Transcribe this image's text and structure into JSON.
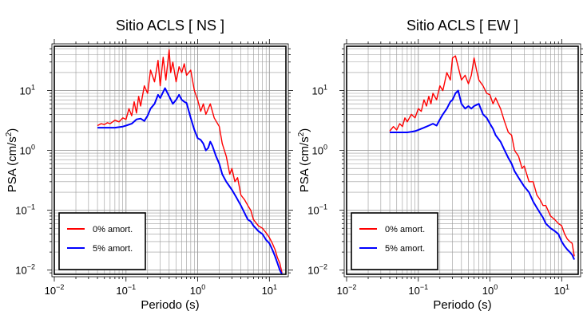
{
  "chart_data": [
    {
      "type": "line",
      "title": "Sitio ACLS [ NS ]",
      "xlabel": "Periodo (s)",
      "ylabel_main": "PSA (cm/s",
      "ylabel_sup": "2",
      "ylabel_end": ")",
      "x_scale": "log",
      "y_scale": "log",
      "xlim": [
        0.01,
        17
      ],
      "ylim": [
        0.0085,
        55
      ],
      "grid": true,
      "legend_position": "bottom-left",
      "x_ticks": [
        {
          "v": 0.01,
          "base": "10",
          "exp": "−2"
        },
        {
          "v": 0.1,
          "base": "10",
          "exp": "−1"
        },
        {
          "v": 1,
          "base": "10",
          "exp": "0"
        },
        {
          "v": 10,
          "base": "10",
          "exp": "1"
        }
      ],
      "y_ticks": [
        {
          "v": 0.01,
          "base": "10",
          "exp": "−2"
        },
        {
          "v": 0.1,
          "base": "10",
          "exp": "−1"
        },
        {
          "v": 1,
          "base": "10",
          "exp": "0"
        },
        {
          "v": 10,
          "base": "10",
          "exp": "1"
        }
      ],
      "series": [
        {
          "name": "0% amort.",
          "color": "#ff0000",
          "x": [
            0.04,
            0.045,
            0.05,
            0.055,
            0.06,
            0.07,
            0.08,
            0.09,
            0.1,
            0.11,
            0.12,
            0.13,
            0.14,
            0.15,
            0.16,
            0.18,
            0.2,
            0.22,
            0.25,
            0.28,
            0.3,
            0.33,
            0.36,
            0.4,
            0.42,
            0.45,
            0.5,
            0.55,
            0.6,
            0.65,
            0.7,
            0.8,
            0.9,
            1.0,
            1.1,
            1.2,
            1.3,
            1.5,
            1.7,
            2.0,
            2.2,
            2.5,
            2.8,
            3.0,
            3.3,
            3.6,
            4.0,
            4.5,
            5.0,
            5.5,
            6.0,
            7.0,
            8.0,
            9.0,
            10.0,
            11.0,
            12.0,
            13.0,
            14.0,
            15.0
          ],
          "y": [
            2.6,
            2.8,
            2.7,
            2.9,
            2.8,
            3.2,
            3.0,
            3.5,
            3.3,
            5.0,
            3.8,
            6.5,
            4.2,
            8.0,
            5.5,
            12.0,
            9.0,
            22.0,
            14.0,
            32.0,
            12.0,
            36.0,
            15.0,
            48.0,
            20.0,
            30.0,
            14.0,
            25.0,
            20.0,
            28.0,
            18.0,
            22.0,
            10.0,
            7.0,
            4.5,
            6.0,
            4.0,
            6.0,
            3.5,
            2.5,
            1.3,
            0.8,
            0.4,
            0.5,
            0.3,
            0.35,
            0.18,
            0.15,
            0.12,
            0.1,
            0.07,
            0.055,
            0.05,
            0.042,
            0.035,
            0.028,
            0.022,
            0.016,
            0.013,
            0.009
          ]
        },
        {
          "name": "5% amort.",
          "color": "#0000ff",
          "x": [
            0.04,
            0.05,
            0.06,
            0.07,
            0.08,
            0.09,
            0.1,
            0.12,
            0.14,
            0.16,
            0.18,
            0.2,
            0.22,
            0.25,
            0.28,
            0.3,
            0.35,
            0.4,
            0.45,
            0.5,
            0.55,
            0.6,
            0.65,
            0.7,
            0.8,
            0.9,
            1.0,
            1.1,
            1.2,
            1.3,
            1.4,
            1.5,
            1.6,
            1.8,
            2.0,
            2.2,
            2.5,
            3.0,
            3.5,
            4.0,
            4.5,
            5.0,
            5.5,
            6.0,
            7.0,
            8.0,
            9.0,
            10.0,
            11.0,
            12.0,
            13.0,
            14.0,
            15.0
          ],
          "y": [
            2.4,
            2.4,
            2.4,
            2.4,
            2.45,
            2.5,
            2.6,
            2.8,
            3.3,
            3.4,
            3.1,
            3.8,
            5.0,
            6.0,
            8.5,
            7.5,
            11.0,
            8.0,
            6.0,
            7.0,
            8.5,
            7.0,
            6.5,
            6.2,
            3.5,
            2.2,
            1.6,
            1.5,
            1.3,
            1.0,
            1.1,
            1.4,
            1.2,
            0.8,
            0.6,
            0.4,
            0.3,
            0.22,
            0.16,
            0.12,
            0.09,
            0.07,
            0.065,
            0.055,
            0.045,
            0.04,
            0.032,
            0.028,
            0.022,
            0.017,
            0.013,
            0.01,
            0.0085
          ]
        }
      ]
    },
    {
      "type": "line",
      "title": "Sitio ACLS [ EW ]",
      "xlabel": "Periodo (s)",
      "ylabel_main": "PSA (cm/s",
      "ylabel_sup": "2",
      "ylabel_end": ")",
      "x_scale": "log",
      "y_scale": "log",
      "xlim": [
        0.01,
        17
      ],
      "ylim": [
        0.0085,
        55
      ],
      "grid": true,
      "legend_position": "bottom-left",
      "x_ticks": [
        {
          "v": 0.01,
          "base": "10",
          "exp": "−2"
        },
        {
          "v": 0.1,
          "base": "10",
          "exp": "−1"
        },
        {
          "v": 1,
          "base": "10",
          "exp": "0"
        },
        {
          "v": 10,
          "base": "10",
          "exp": "1"
        }
      ],
      "y_ticks": [
        {
          "v": 0.01,
          "base": "10",
          "exp": "−2"
        },
        {
          "v": 0.1,
          "base": "10",
          "exp": "−1"
        },
        {
          "v": 1,
          "base": "10",
          "exp": "0"
        },
        {
          "v": 10,
          "base": "10",
          "exp": "1"
        }
      ],
      "series": [
        {
          "name": "0% amort.",
          "color": "#ff0000",
          "x": [
            0.04,
            0.045,
            0.05,
            0.055,
            0.06,
            0.065,
            0.07,
            0.08,
            0.09,
            0.1,
            0.11,
            0.12,
            0.13,
            0.14,
            0.15,
            0.16,
            0.18,
            0.2,
            0.22,
            0.25,
            0.28,
            0.3,
            0.33,
            0.36,
            0.4,
            0.45,
            0.5,
            0.55,
            0.6,
            0.65,
            0.7,
            0.8,
            0.9,
            1.0,
            1.1,
            1.2,
            1.4,
            1.6,
            1.8,
            2.0,
            2.2,
            2.5,
            2.8,
            3.0,
            3.5,
            4.0,
            4.5,
            5.0,
            5.5,
            6.0,
            7.0,
            8.0,
            9.0,
            10.0,
            11.0,
            12.0,
            13.0,
            14.0,
            15.0
          ],
          "y": [
            2.1,
            2.5,
            2.2,
            2.8,
            2.5,
            3.5,
            3.0,
            4.0,
            3.5,
            5.0,
            4.5,
            7.0,
            5.5,
            8.0,
            6.0,
            9.0,
            7.0,
            12.0,
            10.0,
            20.0,
            15.0,
            35.0,
            38.0,
            25.0,
            15.0,
            18.0,
            13.0,
            18.0,
            35.0,
            22.0,
            15.0,
            12.0,
            9.0,
            8.5,
            6.0,
            7.5,
            5.0,
            3.0,
            2.0,
            1.8,
            1.0,
            0.8,
            0.5,
            0.55,
            0.3,
            0.3,
            0.18,
            0.15,
            0.12,
            0.12,
            0.08,
            0.07,
            0.06,
            0.055,
            0.04,
            0.033,
            0.03,
            0.028,
            0.017
          ]
        },
        {
          "name": "5% amort.",
          "color": "#0000ff",
          "x": [
            0.04,
            0.05,
            0.06,
            0.07,
            0.08,
            0.09,
            0.1,
            0.12,
            0.14,
            0.16,
            0.18,
            0.2,
            0.22,
            0.25,
            0.28,
            0.3,
            0.33,
            0.36,
            0.4,
            0.45,
            0.5,
            0.55,
            0.6,
            0.7,
            0.8,
            0.9,
            1.0,
            1.1,
            1.2,
            1.4,
            1.6,
            1.8,
            2.0,
            2.2,
            2.5,
            3.0,
            3.5,
            4.0,
            4.5,
            5.0,
            5.5,
            6.0,
            7.0,
            8.0,
            9.0,
            10.0,
            11.0,
            12.0,
            13.0,
            14.0,
            15.0
          ],
          "y": [
            2.0,
            2.0,
            2.0,
            2.0,
            2.05,
            2.1,
            2.2,
            2.4,
            2.6,
            2.8,
            2.6,
            3.3,
            4.0,
            5.0,
            6.5,
            7.0,
            9.0,
            10.0,
            6.0,
            5.0,
            5.5,
            5.0,
            5.5,
            6.0,
            4.0,
            3.5,
            2.8,
            2.3,
            1.8,
            1.4,
            1.0,
            0.75,
            0.6,
            0.45,
            0.35,
            0.25,
            0.2,
            0.14,
            0.11,
            0.09,
            0.075,
            0.06,
            0.05,
            0.045,
            0.04,
            0.03,
            0.025,
            0.022,
            0.02,
            0.018,
            0.015
          ]
        }
      ]
    }
  ]
}
